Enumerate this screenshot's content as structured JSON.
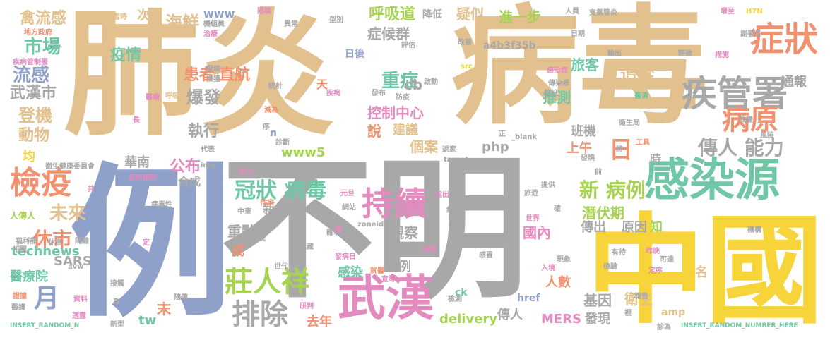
{
  "palette": {
    "tan": "#e2c18f",
    "gray": "#a8a8a8",
    "blue": "#8fa0c9",
    "green": "#6fc7a5",
    "pink": "#e38bbf",
    "orange": "#f2916f",
    "yellow": "#f6d43a",
    "lime": "#a7d353"
  },
  "words": [
    {
      "text": "肺炎",
      "color": "tan"
    },
    {
      "text": "病毒",
      "color": "tan"
    },
    {
      "text": "不明",
      "color": "gray"
    },
    {
      "text": "例",
      "color": "blue"
    },
    {
      "text": "中國",
      "color": "yellow"
    },
    {
      "text": "感染源",
      "color": "green"
    },
    {
      "text": "武漢",
      "color": "pink"
    },
    {
      "text": "疾管署",
      "color": "gray"
    },
    {
      "text": "症狀",
      "color": "orange"
    },
    {
      "text": "持續",
      "color": "pink"
    },
    {
      "text": "檢疫",
      "color": "orange"
    },
    {
      "text": "莊人祥",
      "color": "lime"
    },
    {
      "text": "排除",
      "color": "gray"
    },
    {
      "text": "病原",
      "color": "orange"
    },
    {
      "text": "日",
      "color": "orange"
    },
    {
      "text": "冠狀 病毒",
      "color": "green"
    },
    {
      "text": "傳人 能力",
      "color": "gray"
    },
    {
      "text": "新 病例",
      "color": "lime"
    },
    {
      "text": "月",
      "color": "blue"
    },
    {
      "text": "休市",
      "color": "orange"
    },
    {
      "text": "未來",
      "color": "tan"
    },
    {
      "text": "市場",
      "color": "green"
    },
    {
      "text": "流感",
      "color": "blue"
    },
    {
      "text": "武漢市",
      "color": "gray"
    },
    {
      "text": "登機",
      "color": "tan"
    },
    {
      "text": "動物",
      "color": "tan"
    },
    {
      "text": "疫情",
      "color": "green"
    },
    {
      "text": "海鮮",
      "color": "tan"
    },
    {
      "text": "禽流感",
      "color": "tan"
    },
    {
      "text": "患者",
      "color": "orange"
    },
    {
      "text": "直航",
      "color": "orange"
    },
    {
      "text": "爆發",
      "color": "gray"
    },
    {
      "text": "執行",
      "color": "gray"
    },
    {
      "text": "公布",
      "color": "pink"
    },
    {
      "text": "合成",
      "color": "gray"
    },
    {
      "text": "華南",
      "color": "gray"
    },
    {
      "text": "呼吸道",
      "color": "lime"
    },
    {
      "text": "症候群",
      "color": "gray"
    },
    {
      "text": "疑似",
      "color": "tan"
    },
    {
      "text": "重症",
      "color": "green"
    },
    {
      "text": "控制中心",
      "color": "pink"
    },
    {
      "text": "說",
      "color": "orange"
    },
    {
      "text": "建議",
      "color": "tan"
    },
    {
      "text": "個案",
      "color": "tan"
    },
    {
      "text": "推測",
      "color": "green"
    },
    {
      "text": "班機",
      "color": "gray"
    },
    {
      "text": "上午",
      "color": "orange"
    },
    {
      "text": "旅客",
      "color": "green"
    },
    {
      "text": "追蹤",
      "color": "tan"
    },
    {
      "text": "通報",
      "color": "gray"
    },
    {
      "text": "進一步",
      "color": "lime"
    },
    {
      "text": "潛伏期",
      "color": "lime"
    },
    {
      "text": "傳出",
      "color": "gray"
    },
    {
      "text": "原因",
      "color": "gray"
    },
    {
      "text": "知",
      "color": "lime"
    },
    {
      "text": "國內",
      "color": "pink"
    },
    {
      "text": "觀察",
      "color": "gray"
    },
    {
      "text": "人數",
      "color": "orange"
    },
    {
      "text": "基因",
      "color": "gray"
    },
    {
      "text": "衛生",
      "color": "tan"
    },
    {
      "text": "發現",
      "color": "gray"
    },
    {
      "text": "傳人",
      "color": "gray"
    },
    {
      "text": "MERS",
      "color": "pink"
    },
    {
      "text": "delivery",
      "color": "lime"
    },
    {
      "text": "去年",
      "color": "orange"
    },
    {
      "text": "感染",
      "color": "green"
    },
    {
      "text": "病例",
      "color": "gray"
    },
    {
      "text": "重點",
      "color": "gray"
    },
    {
      "text": "成",
      "color": "orange"
    },
    {
      "text": "新",
      "color": "gray"
    },
    {
      "text": "www5",
      "color": "lime"
    },
    {
      "text": "php",
      "color": "gray"
    },
    {
      "text": "cb",
      "color": "gray"
    },
    {
      "text": "technews",
      "color": "green"
    },
    {
      "text": "SARS",
      "color": "gray"
    },
    {
      "text": "醫療院",
      "color": "green"
    },
    {
      "text": "tw",
      "color": "green"
    },
    {
      "text": "末",
      "color": "orange"
    },
    {
      "text": "www",
      "color": "blue"
    },
    {
      "text": "amp",
      "color": "tan"
    },
    {
      "text": "href",
      "color": "blue"
    },
    {
      "text": "a4b3f35b",
      "color": "gray"
    },
    {
      "text": "次",
      "color": "tan"
    },
    {
      "text": "均",
      "color": "yellow"
    },
    {
      "text": "天",
      "color": "orange"
    },
    {
      "text": "名",
      "color": "tan"
    },
    {
      "text": "時",
      "color": "gray"
    },
    {
      "text": "日後",
      "color": "blue"
    },
    {
      "text": "降低",
      "color": "gray"
    },
    {
      "text": "n",
      "color": "blue"
    },
    {
      "text": "ck",
      "color": "green"
    },
    {
      "text": "a",
      "color": "gray"
    },
    {
      "text": "INSERT_RANDOM_N",
      "color": "green"
    },
    {
      "text": "INSERT_RANDOM_NUMBER_HERE",
      "color": "green"
    },
    {
      "text": "機組員",
      "color": "gray"
    },
    {
      "text": "治療",
      "color": "pink"
    },
    {
      "text": "限稿",
      "color": "pink"
    },
    {
      "text": "異常",
      "color": "gray"
    },
    {
      "text": "暫時",
      "color": "tan"
    },
    {
      "text": "型別",
      "color": "gray"
    },
    {
      "text": "地方政府",
      "color": "orange"
    },
    {
      "text": "疾病管制署",
      "color": "pink"
    },
    {
      "text": "習慣",
      "color": "tan"
    },
    {
      "text": "緊稿",
      "color": "gray"
    },
    {
      "text": "接獲",
      "color": "gray"
    },
    {
      "text": "呼吸",
      "color": "tan"
    },
    {
      "text": "醫療",
      "color": "pink"
    },
    {
      "text": "長",
      "color": "pink"
    },
    {
      "text": "統計",
      "color": "gray"
    },
    {
      "text": "減為",
      "color": "orange"
    },
    {
      "text": "疾病",
      "color": "pink"
    },
    {
      "text": "發布",
      "color": "gray"
    },
    {
      "text": "防疫",
      "color": "gray"
    },
    {
      "text": "啟動",
      "color": "gray"
    },
    {
      "text": "航班",
      "color": "gray"
    },
    {
      "text": "改善",
      "color": "gray"
    },
    {
      "text": "評估",
      "color": "gray"
    },
    {
      "text": "src",
      "color": "yellow"
    },
    {
      "text": "人員",
      "color": "gray"
    },
    {
      "text": "支氣管炎",
      "color": "gray"
    },
    {
      "text": "日期",
      "color": "gray"
    },
    {
      "text": "輸出",
      "color": "gray"
    },
    {
      "text": "輕微",
      "color": "gray"
    },
    {
      "text": "措施",
      "color": "pink"
    },
    {
      "text": "增至",
      "color": "pink"
    },
    {
      "text": "副署長",
      "color": "gray"
    },
    {
      "text": "H7N",
      "color": "yellow"
    },
    {
      "text": "感染症",
      "color": "pink"
    },
    {
      "text": "傳染源",
      "color": "gray"
    },
    {
      "text": "醫清",
      "color": "green"
    },
    {
      "text": "衛生局",
      "color": "gray"
    },
    {
      "text": "改變",
      "color": "gray"
    },
    {
      "text": "風險",
      "color": "gray"
    },
    {
      "text": "工具",
      "color": "orange"
    },
    {
      "text": "發燒",
      "color": "gray"
    },
    {
      "text": "正",
      "color": "gray"
    },
    {
      "text": "_blank",
      "color": "gray"
    },
    {
      "text": "代表",
      "color": "gray"
    },
    {
      "text": "img",
      "color": "gray"
    },
    {
      "text": "診斷",
      "color": "gray"
    },
    {
      "text": "序",
      "color": "gray"
    },
    {
      "text": "返家",
      "color": "gray"
    },
    {
      "text": "target",
      "color": "gray"
    },
    {
      "text": "具",
      "color": "orange"
    },
    {
      "text": "衛生健康委員會",
      "color": "gray"
    },
    {
      "text": "共",
      "color": "pink"
    },
    {
      "text": "疾病預防",
      "color": "pink"
    },
    {
      "text": "情況",
      "color": "pink"
    },
    {
      "text": "病毒性",
      "color": "gray"
    },
    {
      "text": "作家",
      "color": "orange"
    },
    {
      "text": "中東",
      "color": "gray"
    },
    {
      "text": "元旦",
      "color": "pink"
    },
    {
      "text": "指出",
      "color": "pink"
    },
    {
      "text": "組織",
      "color": "gray"
    },
    {
      "text": "網站",
      "color": "gray"
    },
    {
      "text": "提供",
      "color": "gray"
    },
    {
      "text": "旅遊",
      "color": "gray"
    },
    {
      "text": "世界",
      "color": "pink"
    },
    {
      "text": "確",
      "color": "gray"
    },
    {
      "text": "機構",
      "color": "gray"
    },
    {
      "text": "zoneid",
      "color": "gray"
    },
    {
      "text": "確切",
      "color": "gray"
    },
    {
      "text": "急性",
      "color": "gray"
    },
    {
      "text": "人傳人",
      "color": "lime"
    },
    {
      "text": "福利部",
      "color": "gray"
    },
    {
      "text": "相關",
      "color": "gray"
    },
    {
      "text": "隔離",
      "color": "gray"
    },
    {
      "text": "休息",
      "color": "gray"
    },
    {
      "text": "定",
      "color": "pink"
    },
    {
      "text": "前晚",
      "color": "gray"
    },
    {
      "text": "隱藏",
      "color": "gray"
    },
    {
      "text": "發病日",
      "color": "pink"
    },
    {
      "text": "培養",
      "color": "pink"
    },
    {
      "text": "感冒",
      "color": "gray"
    },
    {
      "text": "有待",
      "color": "gray"
    },
    {
      "text": "昨晚",
      "color": "pink"
    },
    {
      "text": "可達",
      "color": "gray"
    },
    {
      "text": "檢驗",
      "color": "gray"
    },
    {
      "text": "定序",
      "color": "pink"
    },
    {
      "text": "入境",
      "color": "pink"
    },
    {
      "text": "現象",
      "color": "gray"
    },
    {
      "text": "avw",
      "color": "gray"
    },
    {
      "text": "世代",
      "color": "gray"
    },
    {
      "text": "就醫",
      "color": "orange"
    },
    {
      "text": "宣導",
      "color": "pink"
    },
    {
      "text": "接觸",
      "color": "gray"
    },
    {
      "text": "隨傳",
      "color": "gray"
    },
    {
      "text": "研判",
      "color": "pink"
    },
    {
      "text": "檢測",
      "color": "gray"
    },
    {
      "text": "報告",
      "color": "gray"
    },
    {
      "text": "證據",
      "color": "orange"
    },
    {
      "text": "醫護",
      "color": "gray"
    },
    {
      "text": "資料",
      "color": "pink"
    },
    {
      "text": "透露",
      "color": "pink"
    },
    {
      "text": "新型",
      "color": "gray"
    },
    {
      "text": "裡",
      "color": "gray"
    },
    {
      "text": "診為",
      "color": "gray"
    },
    {
      "text": "將",
      "color": "gray"
    },
    {
      "text": "前",
      "color": "gray"
    },
    {
      "text": "圖",
      "color": "pink"
    }
  ]
}
